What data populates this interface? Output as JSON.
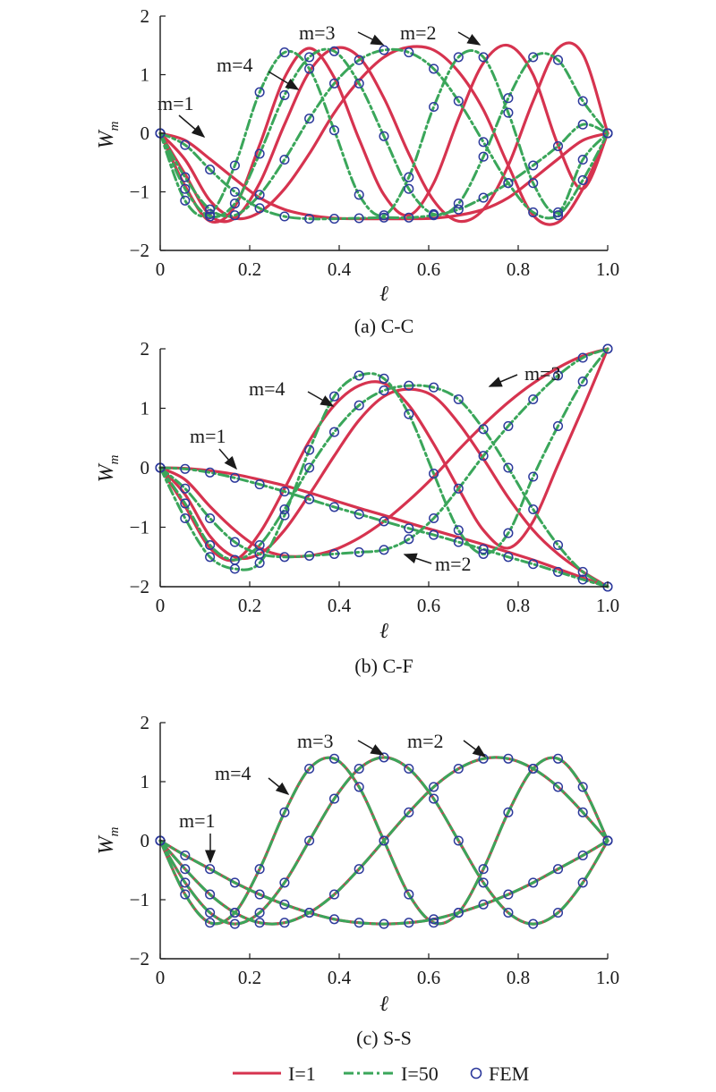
{
  "legend": {
    "analytic_I1": "I=1",
    "analytic_I50": "I=50",
    "fem": "FEM"
  },
  "colors": {
    "analytic_I1": "#d6334f",
    "analytic_I50": "#3aa65a",
    "fem": "#2d3a9c",
    "axis": "#1a1a1a"
  },
  "chart_data": [
    {
      "type": "line",
      "panel": "a",
      "caption": "(a) C-C",
      "xlabel": "ℓ",
      "ylabel": "W_m",
      "xlim": [
        0,
        1
      ],
      "ylim": [
        -2,
        2
      ],
      "xticks": [
        "0",
        "0.2",
        "0.4",
        "0.6",
        "0.8",
        "1.0"
      ],
      "yticks": [
        "−2",
        "−1",
        "0",
        "1",
        "2"
      ],
      "x": [
        0,
        0.0556,
        0.1111,
        0.1667,
        0.2222,
        0.2778,
        0.3333,
        0.3889,
        0.4444,
        0.5,
        0.5556,
        0.6111,
        0.6667,
        0.7222,
        0.7778,
        0.8333,
        0.8889,
        0.9444,
        1.0
      ],
      "series": [
        {
          "name": "m=1, I=1",
          "style": "solid",
          "values": [
            0,
            -0.12,
            -0.44,
            -0.78,
            -1.1,
            -1.3,
            -1.4,
            -1.45,
            -1.46,
            -1.46,
            -1.46,
            -1.45,
            -1.4,
            -1.3,
            -1.1,
            -0.78,
            -0.44,
            -0.12,
            0
          ]
        },
        {
          "name": "m=2, I=1",
          "style": "solid",
          "values": [
            0,
            -0.45,
            -1.15,
            -1.45,
            -1.35,
            -0.95,
            -0.35,
            0.35,
            0.9,
            1.3,
            1.47,
            1.42,
            1.05,
            0.4,
            -0.55,
            -1.4,
            -1.52,
            -0.95,
            0
          ]
        },
        {
          "name": "m=3, I=1",
          "style": "solid",
          "values": [
            0,
            -0.7,
            -1.4,
            -1.45,
            -0.85,
            0.15,
            1.05,
            1.45,
            1.3,
            0.6,
            -0.35,
            -1.15,
            -1.5,
            -1.3,
            -0.55,
            0.55,
            1.45,
            1.35,
            0
          ]
        },
        {
          "name": "m=4, I=1",
          "style": "solid",
          "values": [
            0,
            -0.9,
            -1.5,
            -1.25,
            -0.2,
            0.95,
            1.45,
            0.95,
            -0.1,
            -1.05,
            -1.4,
            -0.85,
            0.25,
            1.2,
            1.5,
            1.0,
            -0.2,
            -0.95,
            0
          ]
        },
        {
          "name": "m=1, I=50",
          "style": "dashdot",
          "values": [
            0,
            -0.2,
            -0.62,
            -1.0,
            -1.28,
            -1.42,
            -1.46,
            -1.46,
            -1.45,
            -1.44,
            -1.44,
            -1.4,
            -1.3,
            -1.1,
            -0.85,
            -0.55,
            -0.22,
            0.15,
            0
          ]
        },
        {
          "name": "m=2, I=50",
          "style": "dashdot",
          "values": [
            0,
            -0.75,
            -1.3,
            -1.4,
            -1.05,
            -0.45,
            0.25,
            0.85,
            1.25,
            1.42,
            1.38,
            1.1,
            0.55,
            -0.15,
            -0.85,
            -1.35,
            -1.4,
            -0.8,
            0
          ]
        },
        {
          "name": "m=3, I=50",
          "style": "dashdot",
          "values": [
            0,
            -0.95,
            -1.42,
            -1.2,
            -0.35,
            0.65,
            1.3,
            1.4,
            0.85,
            -0.05,
            -0.95,
            -1.38,
            -1.2,
            -0.4,
            0.6,
            1.3,
            1.25,
            0.55,
            0
          ]
        },
        {
          "name": "m=4, I=50",
          "style": "dashdot",
          "values": [
            0,
            -1.15,
            -1.38,
            -0.55,
            0.7,
            1.38,
            1.1,
            0.05,
            -1.05,
            -1.4,
            -0.75,
            0.45,
            1.3,
            1.3,
            0.35,
            -0.85,
            -1.35,
            -0.45,
            0
          ]
        }
      ],
      "annotations": [
        "m=1",
        "m=2",
        "m=3",
        "m=4"
      ]
    },
    {
      "type": "line",
      "panel": "b",
      "caption": "(b) C-F",
      "xlabel": "ℓ",
      "ylabel": "W_m",
      "xlim": [
        0,
        1
      ],
      "ylim": [
        -2,
        2
      ],
      "xticks": [
        "0",
        "0.2",
        "0.4",
        "0.6",
        "0.8",
        "1.0"
      ],
      "yticks": [
        "−2",
        "−1",
        "0",
        "1",
        "2"
      ],
      "x": [
        0,
        0.0556,
        0.1111,
        0.1667,
        0.2222,
        0.2778,
        0.3333,
        0.3889,
        0.4444,
        0.5,
        0.5556,
        0.6111,
        0.6667,
        0.7222,
        0.7778,
        0.8333,
        0.8889,
        0.9444,
        1.0
      ],
      "series": [
        {
          "name": "m=1, I=1",
          "style": "solid",
          "values": [
            0,
            -0.01,
            -0.05,
            -0.11,
            -0.2,
            -0.3,
            -0.42,
            -0.55,
            -0.68,
            -0.8,
            -0.93,
            -1.05,
            -1.17,
            -1.29,
            -1.42,
            -1.55,
            -1.7,
            -1.85,
            -2.0
          ]
        },
        {
          "name": "m=2, I=1",
          "style": "solid",
          "values": [
            0,
            -0.2,
            -0.65,
            -1.05,
            -1.35,
            -1.48,
            -1.48,
            -1.38,
            -1.18,
            -0.9,
            -0.55,
            -0.15,
            0.3,
            0.72,
            1.1,
            1.42,
            1.68,
            1.88,
            2.0
          ]
        },
        {
          "name": "m=3, I=1",
          "style": "solid",
          "values": [
            0,
            -0.45,
            -1.15,
            -1.5,
            -1.45,
            -1.05,
            -0.45,
            0.2,
            0.8,
            1.2,
            1.32,
            1.2,
            0.75,
            0.15,
            -0.5,
            -1.05,
            -1.45,
            -1.75,
            -2.0
          ]
        },
        {
          "name": "m=4, I=1",
          "style": "solid",
          "values": [
            0,
            -0.65,
            -1.35,
            -1.55,
            -1.1,
            -0.35,
            0.45,
            1.05,
            1.38,
            1.42,
            1.05,
            0.4,
            -0.35,
            -1.05,
            -1.35,
            -0.9,
            0.05,
            1.0,
            2.0
          ]
        },
        {
          "name": "m=1, I=50",
          "style": "dashdot",
          "values": [
            0,
            -0.02,
            -0.08,
            -0.17,
            -0.28,
            -0.4,
            -0.53,
            -0.66,
            -0.78,
            -0.9,
            -1.02,
            -1.13,
            -1.25,
            -1.37,
            -1.5,
            -1.62,
            -1.75,
            -1.88,
            -2.0
          ]
        },
        {
          "name": "m=2, I=50",
          "style": "dashdot",
          "values": [
            0,
            -0.35,
            -0.85,
            -1.25,
            -1.45,
            -1.5,
            -1.48,
            -1.45,
            -1.42,
            -1.38,
            -1.2,
            -0.85,
            -0.35,
            0.2,
            0.7,
            1.15,
            1.55,
            1.85,
            2.0
          ]
        },
        {
          "name": "m=3, I=50",
          "style": "dashdot",
          "values": [
            0,
            -0.6,
            -1.3,
            -1.55,
            -1.3,
            -0.7,
            0.0,
            0.6,
            1.05,
            1.3,
            1.38,
            1.35,
            1.15,
            0.65,
            0.0,
            -0.7,
            -1.3,
            -1.75,
            -2.0
          ]
        },
        {
          "name": "m=4, I=50",
          "style": "dashdot",
          "values": [
            0,
            -0.85,
            -1.5,
            -1.7,
            -1.6,
            -0.8,
            0.3,
            1.2,
            1.55,
            1.5,
            0.9,
            -0.1,
            -1.05,
            -1.45,
            -1.1,
            -0.15,
            0.7,
            1.45,
            2.0
          ]
        }
      ],
      "annotations": [
        "m=1",
        "m=2",
        "m=3",
        "m=4"
      ]
    },
    {
      "type": "line",
      "panel": "c",
      "caption": "(c) S-S",
      "xlabel": "ℓ",
      "ylabel": "W_m",
      "xlim": [
        0,
        1
      ],
      "ylim": [
        -2,
        2
      ],
      "xticks": [
        "0",
        "0.2",
        "0.4",
        "0.6",
        "0.8",
        "1.0"
      ],
      "yticks": [
        "−2",
        "−1",
        "0",
        "1",
        "2"
      ],
      "x": [
        0,
        0.0556,
        0.1111,
        0.1667,
        0.2222,
        0.2778,
        0.3333,
        0.3889,
        0.4444,
        0.5,
        0.5556,
        0.6111,
        0.6667,
        0.7222,
        0.7778,
        0.8333,
        0.8889,
        0.9444,
        1.0
      ],
      "series": [
        {
          "name": "m=1, I=1",
          "style": "solid",
          "values": [
            0,
            -0.25,
            -0.48,
            -0.71,
            -0.91,
            -1.08,
            -1.22,
            -1.33,
            -1.39,
            -1.41,
            -1.39,
            -1.33,
            -1.22,
            -1.08,
            -0.91,
            -0.71,
            -0.48,
            -0.25,
            0
          ]
        },
        {
          "name": "m=2, I=1",
          "style": "solid",
          "values": [
            0,
            -0.48,
            -0.91,
            -1.22,
            -1.39,
            -1.39,
            -1.22,
            -0.91,
            -0.48,
            0.0,
            0.48,
            0.91,
            1.22,
            1.39,
            1.39,
            1.22,
            0.91,
            0.48,
            0
          ]
        },
        {
          "name": "m=3, I=1",
          "style": "solid",
          "values": [
            0,
            -0.71,
            -1.22,
            -1.41,
            -1.22,
            -0.71,
            0.0,
            0.71,
            1.22,
            1.41,
            1.22,
            0.71,
            0.0,
            -0.71,
            -1.22,
            -1.41,
            -1.22,
            -0.71,
            0
          ]
        },
        {
          "name": "m=4, I=1",
          "style": "solid",
          "values": [
            0,
            -0.91,
            -1.39,
            -1.22,
            -0.48,
            0.48,
            1.22,
            1.39,
            0.91,
            0.0,
            -0.91,
            -1.39,
            -1.22,
            -0.48,
            0.48,
            1.22,
            1.39,
            0.91,
            0
          ]
        },
        {
          "name": "m=1, I=50",
          "style": "dashdot",
          "values": [
            0,
            -0.25,
            -0.48,
            -0.71,
            -0.91,
            -1.08,
            -1.22,
            -1.33,
            -1.39,
            -1.41,
            -1.39,
            -1.33,
            -1.22,
            -1.08,
            -0.91,
            -0.71,
            -0.48,
            -0.25,
            0
          ]
        },
        {
          "name": "m=2, I=50",
          "style": "dashdot",
          "values": [
            0,
            -0.48,
            -0.91,
            -1.22,
            -1.39,
            -1.39,
            -1.22,
            -0.91,
            -0.48,
            0.0,
            0.48,
            0.91,
            1.22,
            1.39,
            1.39,
            1.22,
            0.91,
            0.48,
            0
          ]
        },
        {
          "name": "m=3, I=50",
          "style": "dashdot",
          "values": [
            0,
            -0.71,
            -1.22,
            -1.41,
            -1.22,
            -0.71,
            0.0,
            0.71,
            1.22,
            1.41,
            1.22,
            0.71,
            0.0,
            -0.71,
            -1.22,
            -1.41,
            -1.22,
            -0.71,
            0
          ]
        },
        {
          "name": "m=4, I=50",
          "style": "dashdot",
          "values": [
            0,
            -0.91,
            -1.39,
            -1.22,
            -0.48,
            0.48,
            1.22,
            1.39,
            0.91,
            0.0,
            -0.91,
            -1.39,
            -1.22,
            -0.48,
            0.48,
            1.22,
            1.39,
            0.91,
            0
          ]
        }
      ],
      "annotations": [
        "m=1",
        "m=2",
        "m=3",
        "m=4"
      ]
    }
  ]
}
